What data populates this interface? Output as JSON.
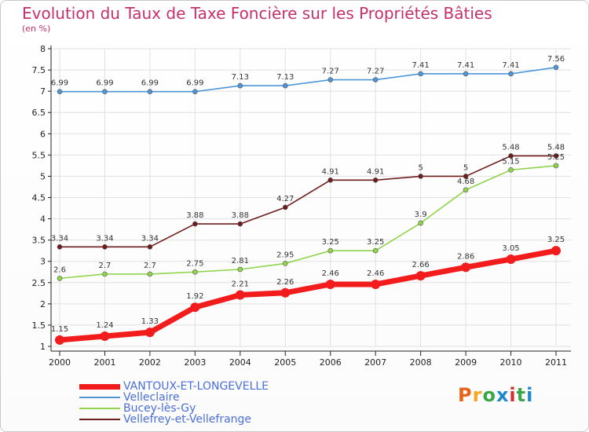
{
  "header": {
    "title": "Evolution du Taux de Taxe Foncière sur les Propriétés Bâties",
    "unit": "(en %)"
  },
  "logo": {
    "text": "Proxiti",
    "colors": [
      "#e8631a",
      "#f5a623",
      "#3aa84a",
      "#1e88c8",
      "#d62f2f",
      "#3aa84a",
      "#1e88c8"
    ]
  },
  "colors": {
    "title": "#c4306a",
    "axis": "#222222",
    "grid": "#e0e0e0",
    "legend_text": "#4a6fd8"
  },
  "chart_data": {
    "type": "line",
    "title": "Evolution du Taux de Taxe Foncière sur les Propriétés Bâties",
    "ylabel": "(en %)",
    "ylim": [
      1,
      8
    ],
    "yticks": [
      "1",
      "1.5",
      "2",
      "2.5",
      "3",
      "3.5",
      "4",
      "4.5",
      "5",
      "5.5",
      "6",
      "6.5",
      "7",
      "7.5",
      "8"
    ],
    "x": [
      "2000",
      "2001",
      "2002",
      "2003",
      "2004",
      "2005",
      "2006",
      "2007",
      "2008",
      "2009",
      "2010",
      "2011"
    ],
    "grid": true,
    "legend_position": "bottom-left",
    "series": [
      {
        "name": "Velleclaire",
        "color": "#4f96d6",
        "values": [
          6.99,
          6.99,
          6.99,
          6.99,
          7.13,
          7.13,
          7.27,
          7.27,
          7.41,
          7.41,
          7.41,
          7.56
        ],
        "labels": [
          "6.99",
          "6.99",
          "6.99",
          "6.99",
          "7.13",
          "7.13",
          "7.27",
          "7.27",
          "7.41",
          "7.41",
          "7.41",
          "7.56"
        ]
      },
      {
        "name": "Vellefrey-et-Vellefrange",
        "color": "#6e1c1c",
        "values": [
          3.34,
          3.34,
          3.34,
          3.88,
          3.88,
          4.27,
          4.91,
          4.91,
          5,
          5,
          5.48,
          5.48
        ],
        "labels": [
          "3.34",
          "3.34",
          "3.34",
          "3.88",
          "3.88",
          "4.27",
          "4.91",
          "4.91",
          "5",
          "5",
          "5.48",
          "5.48"
        ]
      },
      {
        "name": "Bucey-lès-Gy",
        "color": "#8fd44a",
        "values": [
          2.6,
          2.7,
          2.7,
          2.75,
          2.81,
          2.95,
          3.25,
          3.25,
          3.9,
          4.68,
          5.15,
          5.25
        ],
        "labels": [
          "2.6",
          "2.7",
          "2.7",
          "2.75",
          "2.81",
          "2.95",
          "3.25",
          "3.25",
          "3.9",
          "4.68",
          "5.15",
          "5.25"
        ]
      },
      {
        "name": "VANTOUX-ET-LONGEVELLE",
        "color": "#f21c1c",
        "values": [
          1.15,
          1.24,
          1.33,
          1.92,
          2.21,
          2.26,
          2.46,
          2.46,
          2.66,
          2.86,
          3.05,
          3.25
        ],
        "labels": [
          "1.15",
          "1.24",
          "1.33",
          "1.92",
          "2.21",
          "2.26",
          "2.46",
          "2.46",
          "2.66",
          "2.86",
          "3.05",
          "3.25"
        ]
      }
    ],
    "legend_order": [
      "VANTOUX-ET-LONGEVELLE",
      "Velleclaire",
      "Bucey-lès-Gy",
      "Vellefrey-et-Vellefrange"
    ]
  }
}
